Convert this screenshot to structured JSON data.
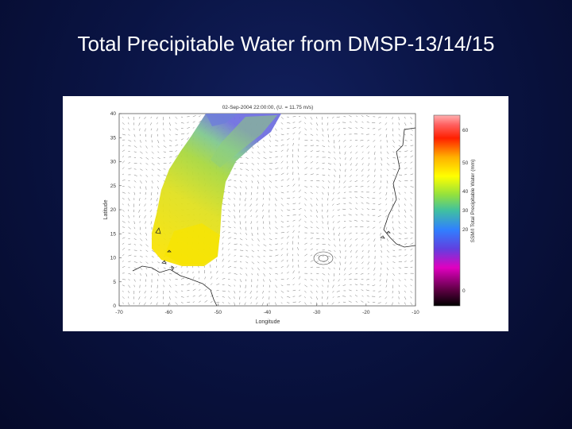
{
  "slide": {
    "title": "Total Precipitable Water from DMSP-13/14/15"
  },
  "figure": {
    "plot_title": "02-Sep-2004 22:00:00, (U. = 11.75 m/s)",
    "xlabel": "Longitude",
    "ylabel": "Latitude",
    "x_ticks": [
      "-70",
      "-60",
      "-50",
      "-40",
      "-30",
      "-20",
      "-10"
    ],
    "y_ticks": [
      "0",
      "5",
      "10",
      "15",
      "20",
      "25",
      "30",
      "35",
      "40"
    ],
    "colorbar": {
      "label": "SSM/I Total Precipitable Water (mm)",
      "ticks": [
        "0",
        "20",
        "30",
        "40",
        "50",
        "60"
      ]
    }
  },
  "colors": {
    "background_center": "#12205e",
    "background_edge": "#050a2a",
    "title_text": "#ffffff",
    "figure_bg": "#ffffff"
  }
}
